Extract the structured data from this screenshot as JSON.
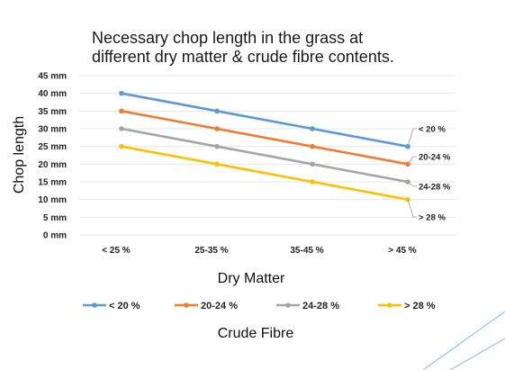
{
  "chart_data": {
    "type": "line",
    "title_lines": [
      "Necessary chop length in the grass at",
      "different dry matter & crude fibre contents."
    ],
    "xlabel": "Dry Matter",
    "ylabel": "Chop length",
    "legend_title": "Crude Fibre",
    "legend_position": "bottom",
    "categories": [
      "< 25 %",
      "25-35 %",
      "35-45 %",
      "> 45 %"
    ],
    "y_ticks": [
      "0 mm",
      "5 mm",
      "10 mm",
      "15 mm",
      "20 mm",
      "25 mm",
      "30 mm",
      "35 mm",
      "40 mm",
      "45 mm"
    ],
    "ylim": [
      0,
      45
    ],
    "grid": true,
    "series": [
      {
        "name": "< 20 %",
        "end_label": "< 20 %",
        "color": "#5b9bd5",
        "values": [
          40,
          35,
          30,
          25
        ]
      },
      {
        "name": "20-24 %",
        "end_label": "20-24 %",
        "color": "#ed7d31",
        "values": [
          35,
          30,
          25,
          20
        ]
      },
      {
        "name": "24-28 %",
        "end_label": "24-28 %",
        "color": "#a5a5a5",
        "values": [
          30,
          25,
          20,
          15
        ]
      },
      {
        "name": "> 28 %",
        "end_label": "> 28 %",
        "color": "#ffc000",
        "values": [
          25,
          20,
          15,
          10
        ]
      }
    ]
  }
}
